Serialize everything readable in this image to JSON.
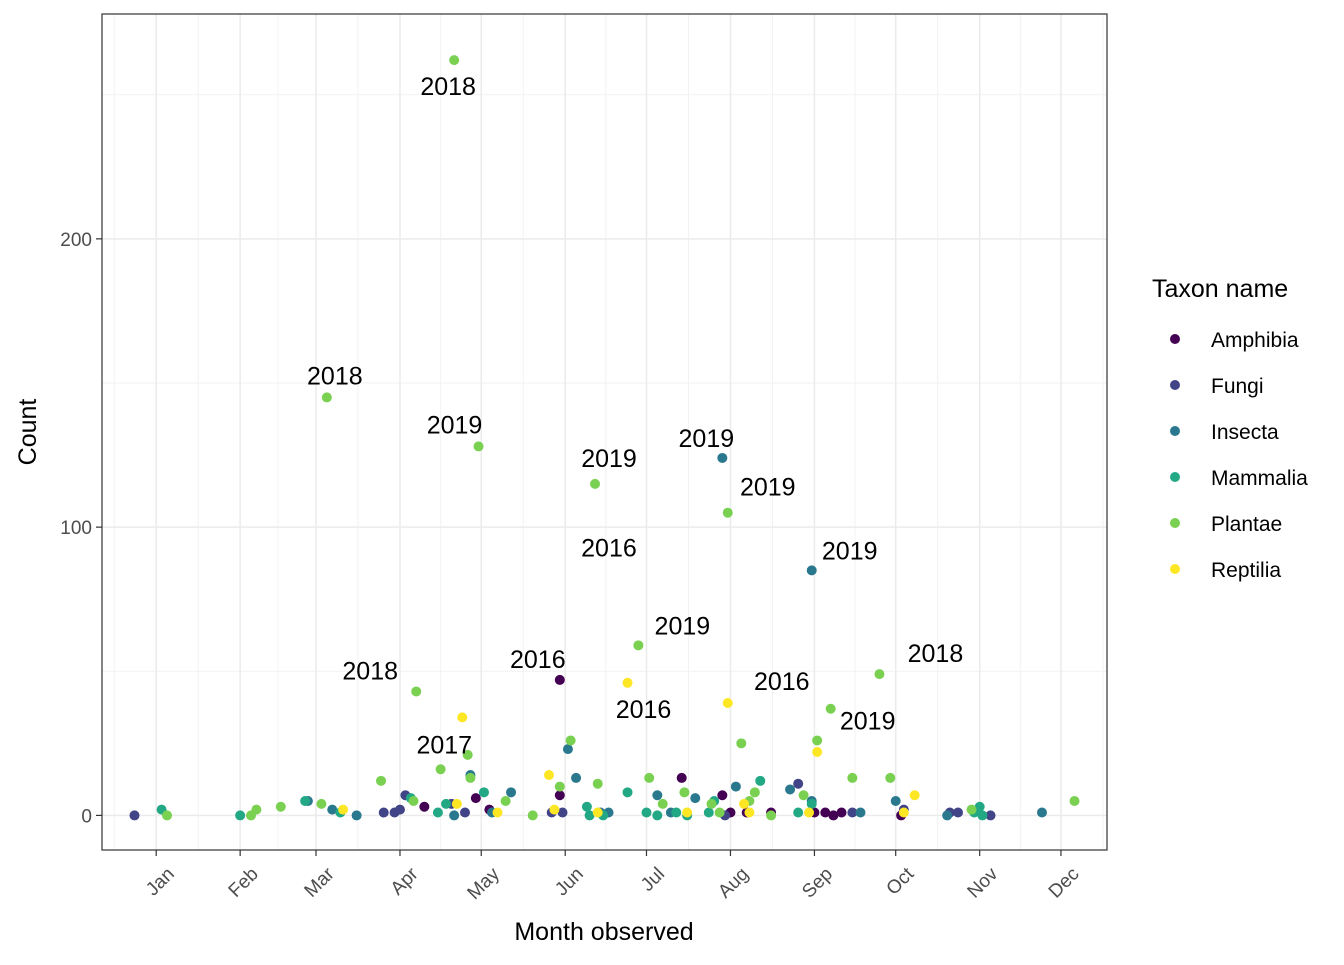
{
  "chart_data": {
    "type": "scatter",
    "xlabel": "Month observed",
    "ylabel": "Count",
    "x_axis": {
      "kind": "date",
      "ticks": [
        "Jan",
        "Feb",
        "Mar",
        "Apr",
        "May",
        "Jun",
        "Jul",
        "Aug",
        "Sep",
        "Oct",
        "Nov",
        "Dec"
      ],
      "range": [
        "Dec 12",
        "Dec 18"
      ]
    },
    "y_axis": {
      "range": [
        -12,
        278
      ],
      "ticks": [
        0,
        100,
        200
      ],
      "minor_ticks": [
        50,
        150,
        250
      ]
    },
    "grid": true,
    "legend": {
      "title": "Taxon name",
      "position": "right",
      "entries": [
        "Amphibia",
        "Fungi",
        "Insecta",
        "Mammalia",
        "Plantae",
        "Reptilia"
      ]
    },
    "colors": {
      "Amphibia": "#440154",
      "Fungi": "#414487",
      "Insecta": "#2A788E",
      "Mammalia": "#22A884",
      "Plantae": "#7AD151",
      "Reptilia": "#FDE725"
    },
    "series": [
      {
        "name": "Amphibia",
        "points": [
          [
            "Apr 10",
            3
          ],
          [
            "Apr 29",
            6
          ],
          [
            "May 4",
            2
          ],
          [
            "May 30",
            47
          ],
          [
            "May 30",
            7
          ],
          [
            "Jul 14",
            13
          ],
          [
            "Jul 29",
            7
          ],
          [
            "Aug 1",
            1
          ],
          [
            "Aug 7",
            1
          ],
          [
            "Aug 16",
            1
          ],
          [
            "Sep 1",
            1
          ],
          [
            "Sep 5",
            1
          ],
          [
            "Sep 8",
            0
          ],
          [
            "Sep 11",
            1
          ],
          [
            "Oct 3",
            0
          ]
        ]
      },
      {
        "name": "Fungi",
        "points": [
          [
            "Dec 24",
            0
          ],
          [
            "Mar 26",
            1
          ],
          [
            "Mar 30",
            1
          ],
          [
            "Apr 1",
            2
          ],
          [
            "Apr 3",
            7
          ],
          [
            "Apr 20",
            4
          ],
          [
            "Apr 25",
            1
          ],
          [
            "May 27",
            1
          ],
          [
            "May 31",
            1
          ],
          [
            "Jul 30",
            0
          ],
          [
            "Aug 26",
            11
          ],
          [
            "Sep 15",
            1
          ],
          [
            "Oct 4",
            2
          ],
          [
            "Oct 21",
            1
          ],
          [
            "Oct 24",
            1
          ],
          [
            "Nov 5",
            0
          ]
        ]
      },
      {
        "name": "Insecta",
        "points": [
          [
            "Feb 26",
            5
          ],
          [
            "Mar 7",
            2
          ],
          [
            "Mar 16",
            0
          ],
          [
            "Apr 21",
            0
          ],
          [
            "Apr 27",
            14
          ],
          [
            "May 5",
            1
          ],
          [
            "May 12",
            8
          ],
          [
            "Jun 2",
            23
          ],
          [
            "Jun 5",
            13
          ],
          [
            "Jun 14",
            1
          ],
          [
            "Jun 17",
            1
          ],
          [
            "Jul 5",
            7
          ],
          [
            "Jul 10",
            1
          ],
          [
            "Jul 19",
            6
          ],
          [
            "Jul 29",
            124
          ],
          [
            "Aug 3",
            10
          ],
          [
            "Aug 23",
            9
          ],
          [
            "Aug 31",
            85
          ],
          [
            "Aug 31",
            5
          ],
          [
            "Sep 18",
            1
          ],
          [
            "Oct 1",
            5
          ],
          [
            "Oct 20",
            0
          ],
          [
            "Nov 24",
            1
          ]
        ]
      },
      {
        "name": "Mammalia",
        "points": [
          [
            "Jan 3",
            2
          ],
          [
            "Feb 1",
            0
          ],
          [
            "Feb 25",
            5
          ],
          [
            "Mar 10",
            1
          ],
          [
            "Apr 5",
            6
          ],
          [
            "Apr 15",
            1
          ],
          [
            "Apr 18",
            4
          ],
          [
            "May 2",
            8
          ],
          [
            "Jun 9",
            3
          ],
          [
            "Jun 10",
            0
          ],
          [
            "Jun 15",
            0
          ],
          [
            "Jun 24",
            8
          ],
          [
            "Jul 1",
            1
          ],
          [
            "Jul 5",
            0
          ],
          [
            "Jul 12",
            1
          ],
          [
            "Jul 16",
            0
          ],
          [
            "Jul 24",
            1
          ],
          [
            "Jul 26",
            5
          ],
          [
            "Aug 12",
            12
          ],
          [
            "Aug 26",
            1
          ],
          [
            "Aug 31",
            4
          ],
          [
            "Oct 30",
            1
          ],
          [
            "Nov 1",
            3
          ],
          [
            "Nov 2",
            0
          ]
        ]
      },
      {
        "name": "Plantae",
        "points": [
          [
            "Jan 5",
            0
          ],
          [
            "Feb 5",
            0
          ],
          [
            "Feb 7",
            2
          ],
          [
            "Feb 16",
            3
          ],
          [
            "Mar 3",
            4
          ],
          [
            "Mar 5",
            145
          ],
          [
            "Mar 25",
            12
          ],
          [
            "Apr 6",
            5
          ],
          [
            "Apr 7",
            43
          ],
          [
            "Apr 16",
            16
          ],
          [
            "Apr 21",
            262
          ],
          [
            "Apr 26",
            21
          ],
          [
            "Apr 27",
            13
          ],
          [
            "Apr 30",
            128
          ],
          [
            "May 10",
            5
          ],
          [
            "May 20",
            0
          ],
          [
            "May 30",
            10
          ],
          [
            "Jun 3",
            26
          ],
          [
            "Jun 12",
            115
          ],
          [
            "Jun 13",
            11
          ],
          [
            "Jun 28",
            59
          ],
          [
            "Jul 2",
            13
          ],
          [
            "Jul 7",
            4
          ],
          [
            "Jul 15",
            8
          ],
          [
            "Jul 25",
            4
          ],
          [
            "Jul 28",
            1
          ],
          [
            "Jul 31",
            105
          ],
          [
            "Aug 5",
            25
          ],
          [
            "Aug 8",
            5
          ],
          [
            "Aug 10",
            8
          ],
          [
            "Aug 16",
            0
          ],
          [
            "Aug 28",
            7
          ],
          [
            "Sep 2",
            26
          ],
          [
            "Sep 7",
            37
          ],
          [
            "Sep 15",
            13
          ],
          [
            "Sep 25",
            49
          ],
          [
            "Sep 29",
            13
          ],
          [
            "Oct 29",
            2
          ],
          [
            "Dec 6",
            5
          ]
        ]
      },
      {
        "name": "Reptilia",
        "points": [
          [
            "Mar 11",
            2
          ],
          [
            "Apr 22",
            4
          ],
          [
            "Apr 24",
            34
          ],
          [
            "May 7",
            1
          ],
          [
            "May 26",
            14
          ],
          [
            "May 28",
            2
          ],
          [
            "Jun 13",
            1
          ],
          [
            "Jun 24",
            46
          ],
          [
            "Jul 16",
            1
          ],
          [
            "Jul 31",
            39
          ],
          [
            "Aug 6",
            4
          ],
          [
            "Aug 8",
            1
          ],
          [
            "Aug 30",
            1
          ],
          [
            "Sep 2",
            22
          ],
          [
            "Oct 4",
            1
          ],
          [
            "Oct 8",
            7
          ]
        ]
      }
    ],
    "annotations": [
      {
        "text": "2018",
        "x": "Apr 21",
        "y": 262
      },
      {
        "text": "2018",
        "x": "Mar 5",
        "y": 145
      },
      {
        "text": "2019",
        "x": "Apr 30",
        "y": 128
      },
      {
        "text": "2019",
        "x": "Jul 29",
        "y": 124
      },
      {
        "text": "2019",
        "x": "Jun 12",
        "y": 115
      },
      {
        "text": "2019",
        "x": "Jul 31",
        "y": 105
      },
      {
        "text": "2016",
        "x": "May 26",
        "y": 86
      },
      {
        "text": "2019",
        "x": "Aug 31",
        "y": 85
      },
      {
        "text": "2019",
        "x": "Jun 28",
        "y": 59
      },
      {
        "text": "2018",
        "x": "Sep 25",
        "y": 49
      },
      {
        "text": "2016",
        "x": "May 30",
        "y": 47
      },
      {
        "text": "2016",
        "x": "Jun 24",
        "y": 46
      },
      {
        "text": "2018",
        "x": "Apr 7",
        "y": 43
      },
      {
        "text": "2017",
        "x": "Apr 24",
        "y": 34
      },
      {
        "text": "2016",
        "x": "Jul 31",
        "y": 39
      },
      {
        "text": "2019",
        "x": "Sep 7",
        "y": 37
      }
    ]
  }
}
